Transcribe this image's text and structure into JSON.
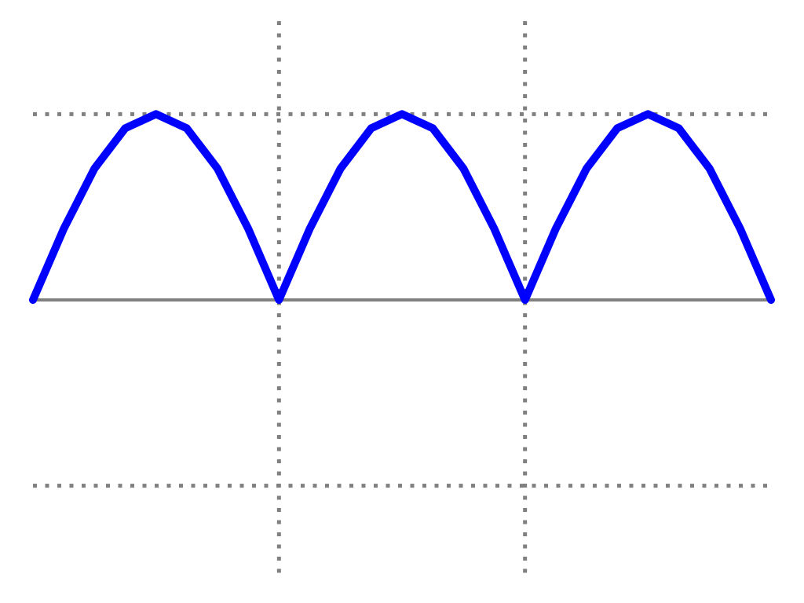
{
  "chart_data": {
    "type": "line",
    "title": "",
    "xlabel": "",
    "ylabel": "",
    "xlim": [
      0,
      3
    ],
    "ylim": [
      -1.5,
      1.5
    ],
    "grid": {
      "horizontal": [
        -1,
        1
      ],
      "vertical": [
        1,
        2
      ],
      "style": "dotted"
    },
    "baseline": 0,
    "colors": {
      "series": "#0000ff",
      "grid": "#808080",
      "baseline": "#808080"
    },
    "series": [
      {
        "x": [
          0,
          0.125,
          0.25,
          0.375,
          0.5,
          0.625,
          0.75,
          0.875,
          1,
          1.125,
          1.25,
          1.375,
          1.5,
          1.625,
          1.75,
          1.875,
          2,
          2.125,
          2.25,
          2.375,
          2.5,
          2.625,
          2.75,
          2.875,
          3
        ],
        "y": [
          0,
          0.383,
          0.707,
          0.924,
          1,
          0.924,
          0.707,
          0.383,
          0,
          0.383,
          0.707,
          0.924,
          1,
          0.924,
          0.707,
          0.383,
          0,
          0.383,
          0.707,
          0.924,
          1,
          0.924,
          0.707,
          0.383,
          0
        ]
      }
    ]
  }
}
